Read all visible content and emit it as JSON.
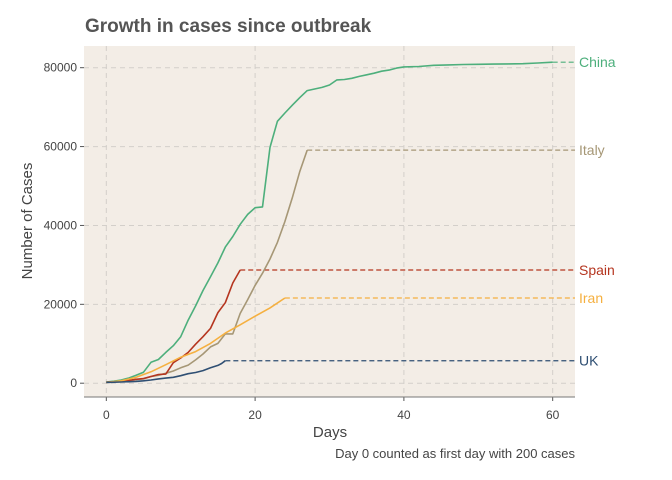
{
  "chart_data": {
    "type": "line",
    "title": "Growth in cases since outbreak",
    "xlabel": "Days",
    "ylabel": "Number of Cases",
    "caption": "Day 0 counted as first day with 200 cases",
    "xlim": [
      -3,
      63
    ],
    "ylim": [
      -3500,
      85500
    ],
    "x_ticks": [
      0,
      20,
      40,
      60
    ],
    "x_tick_labels": [
      "0",
      "20",
      "40",
      "60"
    ],
    "y_ticks": [
      0,
      20000,
      40000,
      60000,
      80000
    ],
    "y_tick_labels": [
      "0",
      "20000",
      "40000",
      "60000",
      "80000"
    ],
    "grid": true,
    "panel_background": "#f3ede6",
    "grid_color": "#d3cfca",
    "legend": "direct labels at right end of each line",
    "series": [
      {
        "name": "China",
        "color": "#4daf7c",
        "points": [
          [
            0,
            300
          ],
          [
            1,
            500
          ],
          [
            2,
            800
          ],
          [
            3,
            1300
          ],
          [
            4,
            2000
          ],
          [
            5,
            2800
          ],
          [
            6,
            5300
          ],
          [
            7,
            6000
          ],
          [
            8,
            7800
          ],
          [
            9,
            9500
          ],
          [
            10,
            11800
          ],
          [
            11,
            16000
          ],
          [
            12,
            19600
          ],
          [
            13,
            23500
          ],
          [
            14,
            27000
          ],
          [
            15,
            30500
          ],
          [
            16,
            34500
          ],
          [
            17,
            37200
          ],
          [
            18,
            40300
          ],
          [
            19,
            42800
          ],
          [
            20,
            44500
          ],
          [
            21,
            44700
          ],
          [
            22,
            59800
          ],
          [
            23,
            66400
          ],
          [
            24,
            68500
          ],
          [
            25,
            70500
          ],
          [
            26,
            72400
          ],
          [
            27,
            74200
          ],
          [
            28,
            74600
          ],
          [
            29,
            75000
          ],
          [
            30,
            75600
          ],
          [
            31,
            76900
          ],
          [
            32,
            77000
          ],
          [
            33,
            77300
          ],
          [
            34,
            77800
          ],
          [
            35,
            78200
          ],
          [
            36,
            78600
          ],
          [
            37,
            79100
          ],
          [
            38,
            79400
          ],
          [
            39,
            79900
          ],
          [
            40,
            80200
          ],
          [
            42,
            80300
          ],
          [
            44,
            80600
          ],
          [
            46,
            80700
          ],
          [
            48,
            80800
          ],
          [
            50,
            80850
          ],
          [
            52,
            80900
          ],
          [
            54,
            80950
          ],
          [
            56,
            81000
          ],
          [
            58,
            81200
          ],
          [
            60,
            81400
          ]
        ],
        "end_label": "China",
        "end_value": 81400
      },
      {
        "name": "Italy",
        "color": "#a69776",
        "points": [
          [
            0,
            200
          ],
          [
            1,
            300
          ],
          [
            2,
            400
          ],
          [
            3,
            650
          ],
          [
            4,
            900
          ],
          [
            5,
            1100
          ],
          [
            6,
            1700
          ],
          [
            7,
            2000
          ],
          [
            8,
            2500
          ],
          [
            9,
            3100
          ],
          [
            10,
            3900
          ],
          [
            11,
            4600
          ],
          [
            12,
            5900
          ],
          [
            13,
            7400
          ],
          [
            14,
            9200
          ],
          [
            15,
            10100
          ],
          [
            16,
            12500
          ],
          [
            17,
            12500
          ],
          [
            18,
            17700
          ],
          [
            19,
            21200
          ],
          [
            20,
            24800
          ],
          [
            21,
            27900
          ],
          [
            22,
            31500
          ],
          [
            23,
            35700
          ],
          [
            24,
            41000
          ],
          [
            25,
            47000
          ],
          [
            26,
            53600
          ],
          [
            27,
            59100
          ]
        ],
        "end_label": "Italy",
        "end_value": 59100
      },
      {
        "name": "Spain",
        "color": "#b5351f",
        "points": [
          [
            0,
            250
          ],
          [
            1,
            350
          ],
          [
            2,
            500
          ],
          [
            3,
            700
          ],
          [
            4,
            1000
          ],
          [
            5,
            1200
          ],
          [
            6,
            1700
          ],
          [
            7,
            2200
          ],
          [
            8,
            2300
          ],
          [
            9,
            5200
          ],
          [
            10,
            6400
          ],
          [
            11,
            7800
          ],
          [
            12,
            9900
          ],
          [
            13,
            11800
          ],
          [
            14,
            13900
          ],
          [
            15,
            17900
          ],
          [
            16,
            20400
          ],
          [
            17,
            25400
          ],
          [
            18,
            28700
          ]
        ],
        "end_label": "Spain",
        "end_value": 28700
      },
      {
        "name": "Iran",
        "color": "#f5b040",
        "points": [
          [
            0,
            200
          ],
          [
            2,
            600
          ],
          [
            4,
            1500
          ],
          [
            6,
            2900
          ],
          [
            8,
            4700
          ],
          [
            10,
            6600
          ],
          [
            12,
            8000
          ],
          [
            14,
            10100
          ],
          [
            16,
            12700
          ],
          [
            18,
            14800
          ],
          [
            20,
            17000
          ],
          [
            22,
            19100
          ],
          [
            24,
            21600
          ]
        ],
        "end_label": "Iran",
        "end_value": 21600
      },
      {
        "name": "UK",
        "color": "#2f4f73",
        "points": [
          [
            0,
            200
          ],
          [
            2,
            300
          ],
          [
            4,
            450
          ],
          [
            5,
            600
          ],
          [
            6,
            800
          ],
          [
            7,
            1100
          ],
          [
            8,
            1300
          ],
          [
            9,
            1500
          ],
          [
            10,
            1900
          ],
          [
            11,
            2400
          ],
          [
            12,
            2700
          ],
          [
            13,
            3200
          ],
          [
            14,
            3900
          ],
          [
            15,
            4500
          ],
          [
            15.5,
            5000
          ],
          [
            16,
            5700
          ]
        ],
        "end_label": "UK",
        "end_value": 5700
      }
    ]
  }
}
